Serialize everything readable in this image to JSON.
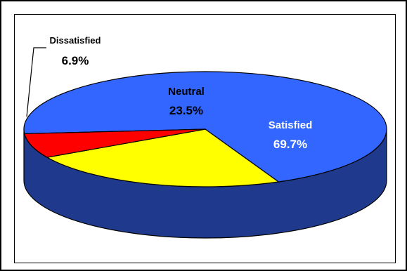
{
  "chart_data": {
    "type": "pie",
    "style": "3d",
    "title": "",
    "slices": [
      {
        "label": "Satisfied",
        "value": 69.7,
        "value_label": "69.7%",
        "color": "#3366FF"
      },
      {
        "label": "Neutral",
        "value": 23.5,
        "value_label": "23.5%",
        "color": "#FFFF00"
      },
      {
        "label": "Dissatisfied",
        "value": 6.9,
        "value_label": "6.9%",
        "color": "#FF0000"
      }
    ],
    "side_color": "#1F3A8C",
    "legend": "none",
    "labels": "data-labels-inside-and-callout"
  }
}
